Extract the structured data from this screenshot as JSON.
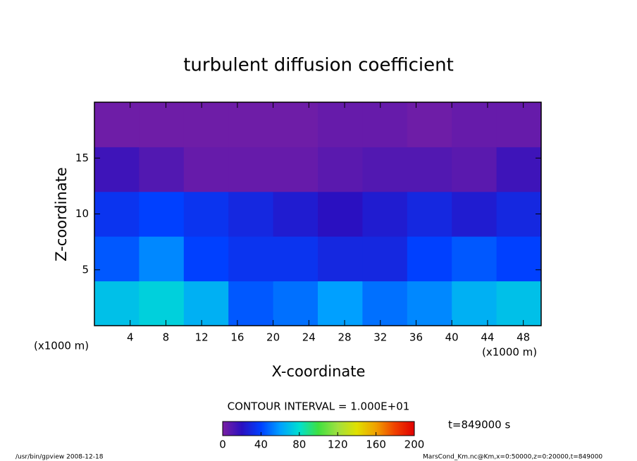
{
  "chart_data": {
    "type": "heatmap",
    "title": "turbulent diffusion coefficient",
    "x_label": "X-coordinate",
    "y_label": "Z-coordinate",
    "x_unit": "(x1000 m)",
    "y_unit": "(x1000 m)",
    "xlim": [
      0,
      50
    ],
    "xticks": [
      4,
      8,
      12,
      16,
      20,
      24,
      28,
      32,
      36,
      40,
      44,
      48
    ],
    "ylim": [
      0,
      20
    ],
    "yticks": [
      5,
      10,
      15
    ],
    "x_bins": [
      0,
      5,
      10,
      15,
      20,
      25,
      30,
      35,
      40,
      45,
      50
    ],
    "y_bins": [
      0,
      4,
      8,
      12,
      16,
      20
    ],
    "z": [
      [
        70,
        75,
        65,
        45,
        50,
        60,
        50,
        55,
        65,
        70
      ],
      [
        45,
        55,
        40,
        35,
        35,
        30,
        30,
        40,
        45,
        40
      ],
      [
        35,
        40,
        35,
        30,
        25,
        20,
        25,
        30,
        25,
        30
      ],
      [
        15,
        10,
        5,
        5,
        5,
        8,
        10,
        10,
        8,
        15
      ],
      [
        3,
        3,
        3,
        3,
        3,
        5,
        5,
        3,
        5,
        5
      ]
    ],
    "colormap": [
      "#7a1fa2",
      "#2a10c0",
      "#0040ff",
      "#00a0ff",
      "#00e0d0",
      "#40e040",
      "#a0e040",
      "#e0e000",
      "#f0a000",
      "#f04000",
      "#e00000"
    ],
    "clim": [
      0,
      200
    ],
    "cticks": [
      0,
      40,
      80,
      120,
      160,
      200
    ],
    "contour_interval": "CONTOUR INTERVAL = 1.000E+01",
    "time": "t=849000 s",
    "footer_left": "/usr/bin/gpview  2008-12-18",
    "footer_right": "MarsCond_Km.nc@Km,x=0:50000,z=0:20000,t=849000"
  }
}
